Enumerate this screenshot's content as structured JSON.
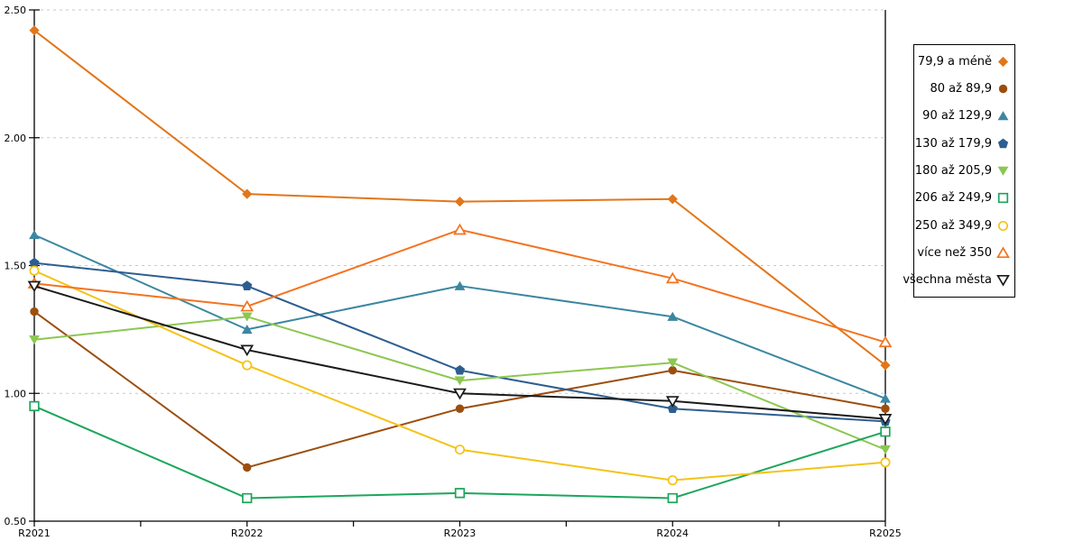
{
  "chart_data": {
    "type": "line",
    "title": "",
    "xlabel": "",
    "ylabel": "",
    "categories": [
      "R2021",
      "R2022",
      "R2023",
      "R2024",
      "R2025"
    ],
    "series": [
      {
        "name": "79,9 a méně",
        "color": "#E2761B",
        "marker": "diamond",
        "fill": "filled",
        "values": [
          2.42,
          1.78,
          1.75,
          1.76,
          1.11
        ]
      },
      {
        "name": "80 až 89,9",
        "color": "#9C4E0D",
        "marker": "circle",
        "fill": "filled",
        "values": [
          1.32,
          0.71,
          0.94,
          1.09,
          0.94
        ]
      },
      {
        "name": "90 až 129,9",
        "color": "#3C86A1",
        "marker": "triangle-up",
        "fill": "filled",
        "values": [
          1.62,
          1.25,
          1.42,
          1.3,
          0.98
        ]
      },
      {
        "name": "130 až 179,9",
        "color": "#2E5E90",
        "marker": "pentagon",
        "fill": "filled",
        "values": [
          1.51,
          1.42,
          1.09,
          0.94,
          0.89
        ]
      },
      {
        "name": "180 až 205,9",
        "color": "#8CC751",
        "marker": "triangle-down",
        "fill": "filled",
        "values": [
          1.21,
          1.3,
          1.05,
          1.12,
          0.78
        ]
      },
      {
        "name": "206 až 249,9",
        "color": "#1CA65B",
        "marker": "square",
        "fill": "hollow",
        "values": [
          0.95,
          0.59,
          0.61,
          0.59,
          0.85
        ]
      },
      {
        "name": "250 až 349,9",
        "color": "#F4C317",
        "marker": "circle",
        "fill": "hollow",
        "values": [
          1.48,
          1.11,
          0.78,
          0.66,
          0.73
        ]
      },
      {
        "name": "více než 350",
        "color": "#F4731F",
        "marker": "triangle-up",
        "fill": "hollow",
        "values": [
          1.43,
          1.34,
          1.64,
          1.45,
          1.2
        ]
      },
      {
        "name": "všechna města",
        "color": "#1A1A1A",
        "marker": "triangle-down",
        "fill": "hollow",
        "values": [
          1.42,
          1.17,
          1.0,
          0.97,
          0.9
        ]
      }
    ],
    "ylim": [
      0.5,
      2.5
    ],
    "ytick_step": 0.5,
    "ytick_labels": [
      "0.50",
      "1.00",
      "1.50",
      "2.00",
      "2.50"
    ],
    "grid": "horizontal-dashed",
    "grid_color": "#C9C9C9",
    "axis_color": "#000000",
    "legend_position": "right",
    "x_minor_ticks_between_categories": true
  }
}
